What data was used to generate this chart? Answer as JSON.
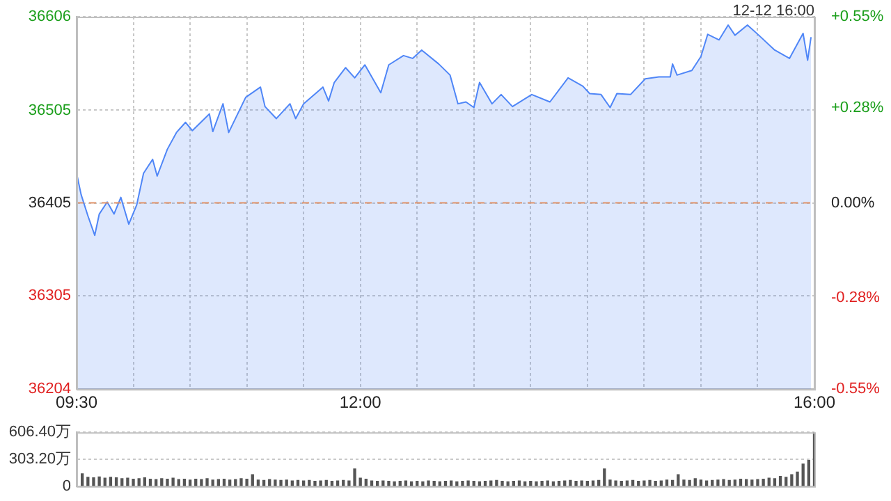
{
  "chart_data": [
    {
      "type": "area",
      "subtitle": "12-12 16:00",
      "x": [
        9.5,
        9.54,
        9.6,
        9.66,
        9.7,
        9.77,
        9.83,
        9.89,
        9.96,
        10.03,
        10.09,
        10.17,
        10.21,
        10.3,
        10.38,
        10.46,
        10.52,
        10.67,
        10.7,
        10.79,
        10.84,
        10.99,
        11.12,
        11.16,
        11.26,
        11.38,
        11.43,
        11.5,
        11.67,
        11.72,
        11.77,
        11.87,
        11.95,
        12.04,
        12.18,
        12.25,
        12.38,
        12.46,
        12.54,
        12.69,
        12.79,
        12.86,
        12.93,
        13,
        13.05,
        13.16,
        13.24,
        13.34,
        13.51,
        13.67,
        13.83,
        13.96,
        14.02,
        14.12,
        14.2,
        14.26,
        14.38,
        14.51,
        14.63,
        14.73,
        14.75,
        14.79,
        14.92,
        15,
        15.06,
        15.16,
        15.24,
        15.3,
        15.41,
        15.51,
        15.65,
        15.78,
        15.9,
        15.94,
        15.97
      ],
      "series": [
        {
          "color": "#4f86f7",
          "values": [
            36437,
            36414,
            36391,
            36370,
            36393,
            36406,
            36393,
            36411,
            36382,
            36403,
            36437,
            36452,
            36434,
            36463,
            36481,
            36492,
            36483,
            36501,
            36482,
            36512,
            36481,
            36519,
            36530,
            36509,
            36496,
            36512,
            36496,
            36512,
            36530,
            36515,
            36535,
            36551,
            36540,
            36554,
            36524,
            36554,
            36564,
            36561,
            36570,
            36555,
            36543,
            36512,
            36514,
            36508,
            36535,
            36512,
            36522,
            36509,
            36522,
            36514,
            36540,
            36531,
            36523,
            36522,
            36508,
            36523,
            36522,
            36539,
            36541,
            36541,
            36555,
            36543,
            36548,
            36563,
            36587,
            36581,
            36597,
            36586,
            36597,
            36586,
            36570,
            36561,
            36588,
            36559,
            36584
          ]
        }
      ],
      "xlim": [
        9.5,
        16
      ],
      "xticks": [
        {
          "value": 9.5,
          "label": "09:30"
        },
        {
          "value": 10,
          "label": null
        },
        {
          "value": 10.5,
          "label": null
        },
        {
          "value": 11,
          "label": null
        },
        {
          "value": 11.5,
          "label": null
        },
        {
          "value": 12,
          "label": "12:00"
        },
        {
          "value": 12.5,
          "label": null
        },
        {
          "value": 13,
          "label": null
        },
        {
          "value": 13.5,
          "label": null
        },
        {
          "value": 14,
          "label": null
        },
        {
          "value": 14.5,
          "label": null
        },
        {
          "value": 15,
          "label": null
        },
        {
          "value": 15.5,
          "label": null
        },
        {
          "value": 16,
          "label": "16:00"
        }
      ],
      "ylim": [
        36204,
        36606
      ],
      "yticks": [
        36204,
        36305,
        36405,
        36505,
        36606
      ],
      "y2lim": [
        -0.55,
        0.55
      ],
      "y2ticks": [
        {
          "value": -0.55,
          "label": "-0.55%"
        },
        {
          "value": -0.28,
          "label": "-0.28%"
        },
        {
          "value": 0,
          "label": "0.00%"
        },
        {
          "value": 0.28,
          "label": "+0.28%"
        },
        {
          "value": 0.55,
          "label": "+0.55%"
        }
      ],
      "ref_lines": [
        {
          "axis": "y",
          "value": 36405,
          "color": "#e0936a",
          "line_style": "dashed"
        }
      ],
      "grid": true,
      "legend": false,
      "marker": "none"
    },
    {
      "type": "bar",
      "x": [
        9.55,
        9.6,
        9.65,
        9.7,
        9.75,
        9.8,
        9.85,
        9.9,
        9.95,
        10,
        10.05,
        10.1,
        10.15,
        10.2,
        10.25,
        10.3,
        10.35,
        10.4,
        10.45,
        10.5,
        10.55,
        10.6,
        10.65,
        10.7,
        10.75,
        10.8,
        10.85,
        10.9,
        10.95,
        11,
        11.05,
        11.1,
        11.15,
        11.2,
        11.25,
        11.3,
        11.35,
        11.4,
        11.45,
        11.5,
        11.55,
        11.6,
        11.65,
        11.7,
        11.75,
        11.8,
        11.85,
        11.9,
        11.95,
        12,
        12.05,
        12.1,
        12.15,
        12.2,
        12.25,
        12.3,
        12.35,
        12.4,
        12.45,
        12.5,
        12.55,
        12.6,
        12.65,
        12.7,
        12.75,
        12.8,
        12.85,
        12.9,
        12.95,
        13,
        13.05,
        13.1,
        13.15,
        13.2,
        13.25,
        13.3,
        13.35,
        13.4,
        13.45,
        13.5,
        13.55,
        13.6,
        13.65,
        13.7,
        13.75,
        13.8,
        13.85,
        13.9,
        13.95,
        14,
        14.05,
        14.1,
        14.15,
        14.2,
        14.25,
        14.3,
        14.35,
        14.4,
        14.45,
        14.5,
        14.55,
        14.6,
        14.65,
        14.7,
        14.75,
        14.8,
        14.85,
        14.9,
        14.95,
        15,
        15.05,
        15.1,
        15.15,
        15.2,
        15.25,
        15.3,
        15.35,
        15.4,
        15.45,
        15.5,
        15.55,
        15.6,
        15.65,
        15.7,
        15.75,
        15.8,
        15.85,
        15.9,
        15.95,
        16
      ],
      "series": [
        {
          "color": "#555555",
          "values": [
            140,
            100,
            95,
            105,
            90,
            100,
            95,
            85,
            90,
            80,
            85,
            95,
            80,
            75,
            85,
            80,
            90,
            75,
            80,
            70,
            80,
            75,
            85,
            70,
            75,
            80,
            70,
            75,
            85,
            80,
            130,
            70,
            65,
            75,
            70,
            65,
            70,
            60,
            65,
            60,
            65,
            55,
            60,
            65,
            55,
            60,
            65,
            60,
            195,
            90,
            80,
            60,
            55,
            60,
            55,
            50,
            55,
            60,
            50,
            55,
            50,
            60,
            55,
            50,
            55,
            60,
            50,
            55,
            60,
            55,
            50,
            55,
            60,
            65,
            55,
            50,
            55,
            60,
            50,
            55,
            50,
            55,
            60,
            50,
            55,
            60,
            65,
            55,
            60,
            55,
            60,
            65,
            195,
            70,
            60,
            55,
            60,
            65,
            55,
            60,
            65,
            55,
            60,
            70,
            65,
            130,
            70,
            65,
            85,
            70,
            60,
            65,
            70,
            75,
            65,
            70,
            80,
            75,
            70,
            75,
            80,
            90,
            85,
            110,
            100,
            130,
            160,
            250,
            290,
            606.4
          ]
        }
      ],
      "xlim": [
        9.5,
        16
      ],
      "ylim": [
        0,
        606.4
      ],
      "yticks": [
        0,
        {
          "value": 303.2,
          "label": "303.20万"
        },
        {
          "value": 606.4,
          "label": "606.40万"
        }
      ],
      "grid": "y",
      "legend": false,
      "tick_labels": "y"
    }
  ]
}
